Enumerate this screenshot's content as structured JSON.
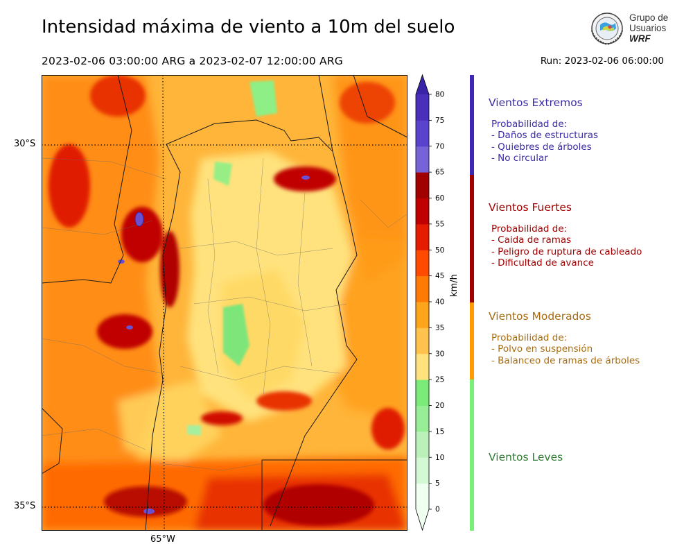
{
  "header": {
    "title": "Intensidad máxima de viento a 10m del suelo",
    "period": "2023-02-06 03:00:00 ARG  a  2023-02-07 12:00:00 ARG",
    "run": "Run: 2023-02-06 06:00:00"
  },
  "logo": {
    "line1": "Grupo de",
    "line2": "Usuarios",
    "line3": "WRF"
  },
  "map": {
    "lat_labels": [
      "30°S",
      "35°S"
    ],
    "lon_labels": [
      "65°W"
    ]
  },
  "colorbar": {
    "unit": "km/h",
    "ticks": [
      "0",
      "5",
      "10",
      "15",
      "20",
      "25",
      "30",
      "35",
      "40",
      "45",
      "50",
      "55",
      "60",
      "65",
      "70",
      "75",
      "80"
    ],
    "colors": [
      "#effff0",
      "#d4f8d4",
      "#bbf0ba",
      "#98ee96",
      "#7aea78",
      "#ffe27d",
      "#ffc34d",
      "#ffa51c",
      "#ff7a05",
      "#ff4a00",
      "#e61c00",
      "#c00000",
      "#a00000",
      "#7763d8",
      "#5a43cc",
      "#4a2fbb",
      "#3b23a8"
    ]
  },
  "categories": [
    {
      "title": "Vientos Extremos",
      "color": "#3a2aa6",
      "lines": [
        "Probabilidad de:",
        "- Daños de estructuras",
        "- Quiebres de árboles",
        "- No circular"
      ]
    },
    {
      "title": "Vientos Fuertes",
      "color": "#a00000",
      "lines": [
        "Probabilidad de:",
        "- Caida de ramas",
        "- Peligro de ruptura de cableado",
        "- Dificultad de avance"
      ]
    },
    {
      "title": "Vientos Moderados",
      "color": "#a86c10",
      "lines": [
        "Probabilidad de:",
        "- Polvo en suspensión",
        "- Balanceo de ramas de árboles"
      ]
    },
    {
      "title": "Vientos Leves",
      "color": "#2f7d33",
      "lines": []
    }
  ],
  "category_bar_colors": [
    "#3c28b4",
    "#a00000",
    "#ff9a00",
    "#78f078"
  ]
}
